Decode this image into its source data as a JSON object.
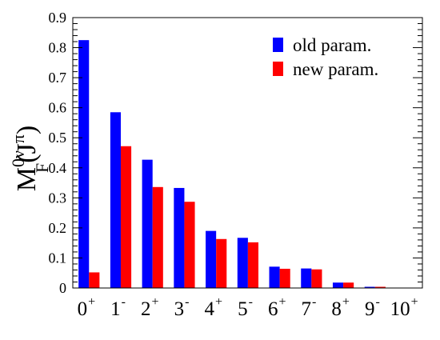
{
  "chart_data": {
    "type": "bar",
    "title": "",
    "xlabel": "",
    "ylabel": {
      "base": "M",
      "superscript": "0ν",
      "subscript": "F",
      "open": "(J",
      "argument_superscript": "π",
      "close": ")"
    },
    "categories": [
      {
        "base": "0",
        "sup": "+"
      },
      {
        "base": "1",
        "sup": "-"
      },
      {
        "base": "2",
        "sup": "+"
      },
      {
        "base": "3",
        "sup": "-"
      },
      {
        "base": "4",
        "sup": "+"
      },
      {
        "base": "5",
        "sup": "-"
      },
      {
        "base": "6",
        "sup": "+"
      },
      {
        "base": "7",
        "sup": "-"
      },
      {
        "base": "8",
        "sup": "+"
      },
      {
        "base": "9",
        "sup": "-"
      },
      {
        "base": "10",
        "sup": "+"
      }
    ],
    "series": [
      {
        "name": "old param.",
        "color": "#0000ff",
        "values": [
          0.825,
          0.585,
          0.427,
          0.333,
          0.19,
          0.167,
          0.071,
          0.065,
          0.018,
          0.004,
          0.0
        ]
      },
      {
        "name": "new param.",
        "color": "#ff0000",
        "values": [
          0.052,
          0.472,
          0.336,
          0.287,
          0.163,
          0.152,
          0.064,
          0.062,
          0.018,
          0.004,
          0.0
        ]
      }
    ],
    "ylim": [
      0,
      0.9
    ],
    "yticks": [
      "0",
      "0.1",
      "0.2",
      "0.3",
      "0.4",
      "0.5",
      "0.6",
      "0.7",
      "0.8",
      "0.9"
    ],
    "grid": false,
    "legend_position": "top-right"
  }
}
